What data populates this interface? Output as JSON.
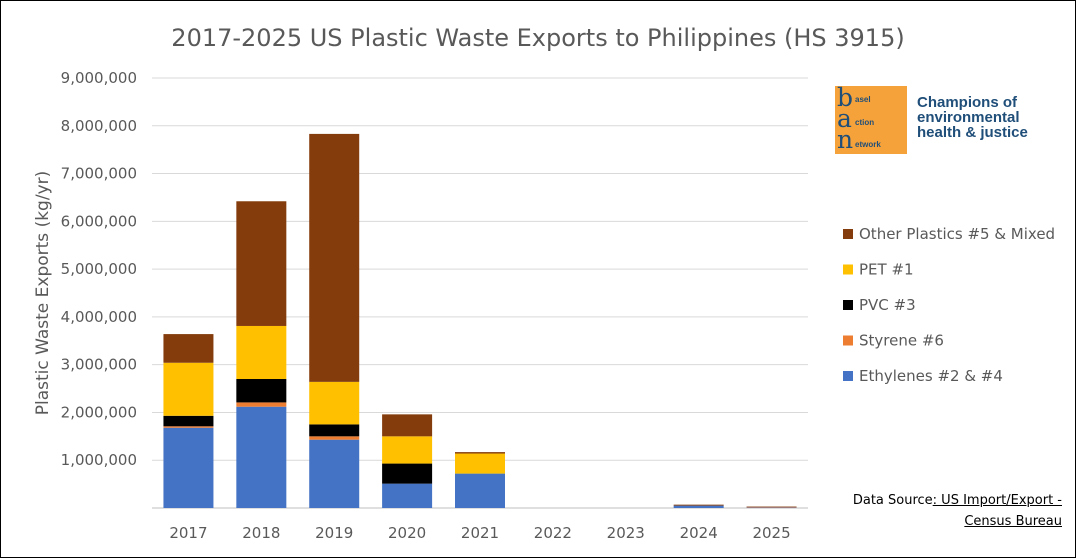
{
  "chart_data": {
    "type": "bar",
    "stacked": true,
    "title": "2017-2025 US Plastic Waste Exports to Philippines (HS 3915)",
    "xlabel": "",
    "ylabel": "Plastic Waste Exports (kg/yr)",
    "ylim": [
      0,
      9000000
    ],
    "yticks": [
      "9,000,000",
      "8,000,000",
      "7,000,000",
      "6,000,000",
      "5,000,000",
      "4,000,000",
      "3,000,000",
      "2,000,000",
      "1,000,000",
      ""
    ],
    "ytick_values": [
      9000000,
      8000000,
      7000000,
      6000000,
      5000000,
      4000000,
      3000000,
      2000000,
      1000000,
      0
    ],
    "grid": true,
    "legend_position": "right",
    "categories": [
      "2017",
      "2018",
      "2019",
      "2020",
      "2021",
      "2022",
      "2023",
      "2024",
      "2025"
    ],
    "series": [
      {
        "name": "Ethylenes #2 & #4",
        "color": "#4472c4",
        "values": [
          1680000,
          2120000,
          1430000,
          510000,
          720000,
          0,
          0,
          50000,
          10000
        ]
      },
      {
        "name": "Styrene #6",
        "color": "#ed7d31",
        "values": [
          30000,
          90000,
          70000,
          0,
          0,
          0,
          0,
          0,
          10000
        ]
      },
      {
        "name": "PVC #3",
        "color": "#000000",
        "values": [
          220000,
          490000,
          250000,
          420000,
          0,
          0,
          0,
          0,
          0
        ]
      },
      {
        "name": "PET #1",
        "color": "#ffc000",
        "values": [
          1110000,
          1110000,
          890000,
          570000,
          420000,
          0,
          0,
          0,
          0
        ]
      },
      {
        "name": "Other Plastics #5 & Mixed",
        "color": "#843c0c",
        "values": [
          600000,
          2610000,
          5190000,
          460000,
          30000,
          0,
          0,
          20000,
          10000
        ]
      }
    ]
  },
  "logo": {
    "letters": [
      "b",
      "a",
      "n"
    ],
    "words": [
      "asel",
      "ction",
      "etwork"
    ],
    "tagline": "Champions of\nenvironmental\nhealth & justice",
    "colors": {
      "box": "#f5a23a",
      "text": "#1f4e79"
    }
  },
  "source": {
    "prefix": "Data Source",
    "link": ": US Import/Export -",
    "line2": "Census Bureau"
  }
}
